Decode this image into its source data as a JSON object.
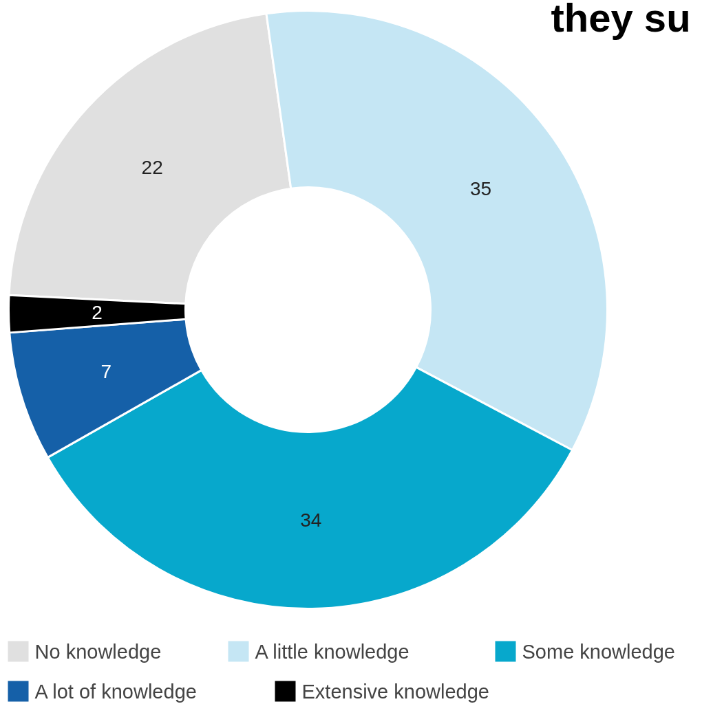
{
  "chart_data": {
    "type": "donut",
    "categories": [
      "No knowledge",
      "A little knowledge",
      "Some knowledge",
      "A lot of knowledge",
      "Extensive knowledge"
    ],
    "values": [
      22,
      35,
      34,
      7,
      2
    ],
    "colors": [
      "#e0e0e0",
      "#c5e6f4",
      "#07a8cc",
      "#1560a8",
      "#000000"
    ],
    "data_labels": true,
    "legend": "bottom",
    "annotations": [
      "they su"
    ]
  }
}
